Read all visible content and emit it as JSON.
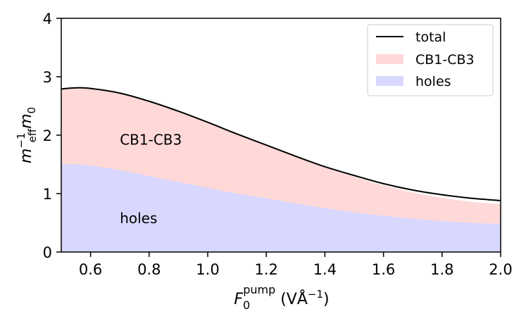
{
  "chart_data": {
    "type": "area",
    "xlabel": {
      "base": "F",
      "sub": "0",
      "sup": "pump",
      "unit_open": " (VÅ",
      "unit_sup": "−1",
      "unit_close": ")"
    },
    "ylabel": {
      "base": "m",
      "sub": "eff",
      "sup": "−1",
      "tail": "m",
      "tail_sub": "0"
    },
    "xlim": [
      0.5,
      2.0
    ],
    "ylim": [
      0,
      4
    ],
    "xticks": [
      0.6,
      0.8,
      1.0,
      1.2,
      1.4,
      1.6,
      1.8,
      2.0
    ],
    "xtick_labels": [
      "0.6",
      "0.8",
      "1.0",
      "1.2",
      "1.4",
      "1.6",
      "1.8",
      "2.0"
    ],
    "yticks": [
      0,
      1,
      2,
      3,
      4
    ],
    "ytick_labels": [
      "0",
      "1",
      "2",
      "3",
      "4"
    ],
    "x": [
      0.5,
      0.55,
      0.6,
      0.7,
      0.8,
      0.9,
      1.0,
      1.1,
      1.2,
      1.3,
      1.4,
      1.5,
      1.6,
      1.7,
      1.8,
      1.9,
      2.0
    ],
    "series": [
      {
        "name": "holes",
        "kind": "fill",
        "color": "#d8d8ff",
        "values": [
          1.5,
          1.5,
          1.48,
          1.4,
          1.3,
          1.2,
          1.1,
          1.0,
          0.92,
          0.83,
          0.75,
          0.68,
          0.62,
          0.57,
          0.53,
          0.5,
          0.48
        ]
      },
      {
        "name": "CB1-CB3",
        "kind": "fill",
        "color": "#ffd8d8",
        "values": [
          2.79,
          2.81,
          2.8,
          2.72,
          2.58,
          2.41,
          2.22,
          2.02,
          1.83,
          1.63,
          1.45,
          1.29,
          1.14,
          1.02,
          0.93,
          0.86,
          0.82
        ]
      },
      {
        "name": "total",
        "kind": "line",
        "color": "#000000",
        "values": [
          2.79,
          2.81,
          2.8,
          2.72,
          2.58,
          2.41,
          2.22,
          2.02,
          1.83,
          1.64,
          1.46,
          1.31,
          1.17,
          1.06,
          0.98,
          0.92,
          0.88
        ]
      }
    ],
    "legend": {
      "position": "top-right",
      "entries": [
        {
          "label": "total",
          "style": "line",
          "color": "#000000"
        },
        {
          "label": "CB1-CB3",
          "style": "patch",
          "color": "#ffd8d8"
        },
        {
          "label": "holes",
          "style": "patch",
          "color": "#d8d8ff"
        }
      ]
    },
    "annotations": [
      {
        "text": "CB1-CB3",
        "x": 0.7,
        "y": 1.92
      },
      {
        "text": "holes",
        "x": 0.7,
        "y": 0.58
      }
    ]
  }
}
